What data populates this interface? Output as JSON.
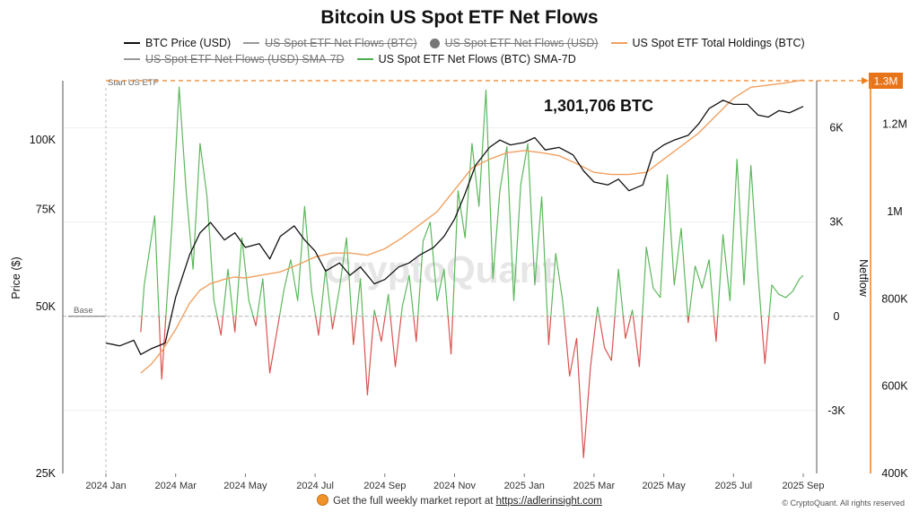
{
  "chart_data": {
    "type": "line",
    "title": "Bitcoin US Spot ETF Net Flows",
    "legend": [
      {
        "name": "BTC Price (USD)",
        "color": "#111111",
        "enabled": true,
        "marker": "line"
      },
      {
        "name": "US Spot ETF Net Flows (BTC)",
        "color": "#999999",
        "enabled": false,
        "marker": "line"
      },
      {
        "name": "US Spot ETF Net Flows (USD)",
        "color": "#777777",
        "enabled": false,
        "marker": "dot"
      },
      {
        "name": "US Spot ETF Total Holdings (BTC)",
        "color": "#f0a060",
        "enabled": true,
        "marker": "line"
      },
      {
        "name": "US Spot ETF Net Flows (USD) SMA-7D",
        "color": "#999999",
        "enabled": false,
        "marker": "line"
      },
      {
        "name": "US Spot ETF Net Flows (BTC) SMA-7D",
        "color": "#4caf50",
        "enabled": true,
        "marker": "line"
      }
    ],
    "x_ticks": [
      "2024 Jan",
      "2024 Mar",
      "2024 May",
      "2024 Jul",
      "2024 Sep",
      "2024 Nov",
      "2025 Jan",
      "2025 Mar",
      "2025 May",
      "2025 Jul",
      "2025 Sep"
    ],
    "price_axis": {
      "label": "Price ($)",
      "scale": "log",
      "ticks": [
        "25K",
        "50K",
        "75K",
        "100K"
      ],
      "values": [
        25000,
        50000,
        75000,
        100000
      ],
      "range": [
        25000,
        128000
      ]
    },
    "netflow_axis": {
      "label": "Netflow",
      "ticks": [
        "-3K",
        "0",
        "3K",
        "6K"
      ],
      "values": [
        -3000,
        0,
        3000,
        6000
      ],
      "range": [
        -5000,
        7500
      ]
    },
    "holdings_axis": {
      "ticks": [
        "400K",
        "600K",
        "800K",
        "1M",
        "1.2M"
      ],
      "values": [
        400000,
        600000,
        800000,
        1000000,
        1200000
      ],
      "range": [
        400000,
        1300000
      ],
      "highlight_label": "1.3M",
      "highlight_value": 1300000
    },
    "annotations": {
      "start_label": "Start US ETF",
      "base_label": "Base",
      "holdings_label": "1,301,706 BTC"
    },
    "series": [
      {
        "name": "BTC Price (USD)",
        "axis": "price",
        "x": [
          0.0,
          0.4,
          0.8,
          1.0,
          1.3,
          1.7,
          2.0,
          2.4,
          2.7,
          3.0,
          3.4,
          3.7,
          4.0,
          4.4,
          4.7,
          5.0,
          5.4,
          5.7,
          6.0,
          6.3,
          6.7,
          7.0,
          7.3,
          7.7,
          8.0,
          8.4,
          8.7,
          9.0,
          9.4,
          9.7,
          10.0,
          10.3,
          10.6,
          11.0,
          11.3,
          11.6,
          12.0,
          12.3,
          12.6,
          13.0,
          13.4,
          13.7,
          14.0,
          14.4,
          14.7,
          15.0,
          15.4,
          15.7,
          16.0,
          16.3,
          16.7,
          17.0,
          17.3,
          17.7,
          18.0,
          18.4,
          18.7,
          19.0,
          19.3,
          19.6,
          20.0
        ],
        "values": [
          43000,
          42500,
          43500,
          41000,
          42000,
          43000,
          52000,
          62000,
          68000,
          71000,
          66000,
          68000,
          64000,
          65000,
          61000,
          67000,
          70000,
          66000,
          63000,
          58000,
          60000,
          57000,
          59000,
          55000,
          56000,
          59000,
          60000,
          62000,
          64000,
          67000,
          72000,
          80000,
          90000,
          97000,
          100000,
          98000,
          99000,
          101000,
          96000,
          97000,
          94000,
          88000,
          84000,
          83000,
          85000,
          81000,
          83000,
          95000,
          98000,
          100000,
          102000,
          107000,
          114000,
          118000,
          116000,
          116000,
          111000,
          110000,
          113000,
          112000,
          115000
        ]
      },
      {
        "name": "US Spot ETF Total Holdings (BTC)",
        "axis": "holdings",
        "x": [
          1.0,
          1.3,
          1.6,
          2.0,
          2.4,
          2.7,
          3.0,
          3.4,
          3.7,
          4.0,
          4.5,
          5.0,
          5.5,
          6.0,
          6.5,
          7.0,
          7.5,
          8.0,
          8.5,
          9.0,
          9.5,
          10.0,
          10.5,
          11.0,
          11.5,
          12.0,
          12.5,
          13.0,
          13.5,
          14.0,
          14.5,
          15.0,
          15.5,
          16.0,
          16.5,
          17.0,
          17.5,
          18.0,
          18.5,
          19.0,
          19.5,
          20.0
        ],
        "values": [
          630000,
          650000,
          680000,
          730000,
          790000,
          820000,
          835000,
          845000,
          850000,
          848000,
          855000,
          862000,
          878000,
          896000,
          905000,
          905000,
          900000,
          915000,
          940000,
          970000,
          1000000,
          1050000,
          1100000,
          1120000,
          1135000,
          1140000,
          1135000,
          1128000,
          1110000,
          1090000,
          1085000,
          1085000,
          1090000,
          1120000,
          1150000,
          1180000,
          1220000,
          1260000,
          1285000,
          1290000,
          1295000,
          1301706
        ]
      },
      {
        "name": "US Spot ETF Net Flows (BTC) SMA-7D",
        "axis": "netflow",
        "x": [
          1.0,
          1.1,
          1.4,
          1.6,
          1.9,
          2.1,
          2.3,
          2.5,
          2.7,
          2.9,
          3.1,
          3.3,
          3.5,
          3.7,
          3.9,
          4.1,
          4.3,
          4.5,
          4.7,
          4.9,
          5.1,
          5.3,
          5.5,
          5.7,
          5.9,
          6.1,
          6.3,
          6.5,
          6.7,
          6.9,
          7.1,
          7.3,
          7.5,
          7.7,
          7.9,
          8.1,
          8.3,
          8.5,
          8.7,
          8.9,
          9.1,
          9.3,
          9.5,
          9.7,
          9.9,
          10.1,
          10.3,
          10.5,
          10.7,
          10.9,
          11.1,
          11.3,
          11.5,
          11.7,
          11.9,
          12.1,
          12.3,
          12.5,
          12.7,
          12.9,
          13.1,
          13.3,
          13.5,
          13.7,
          13.9,
          14.1,
          14.3,
          14.5,
          14.7,
          14.9,
          15.1,
          15.3,
          15.5,
          15.7,
          15.9,
          16.1,
          16.3,
          16.5,
          16.7,
          16.9,
          17.1,
          17.3,
          17.5,
          17.7,
          17.9,
          18.1,
          18.3,
          18.5,
          18.7,
          18.9,
          19.1,
          19.3,
          19.5,
          19.7,
          19.9,
          20.0
        ],
        "values": [
          -500,
          1000,
          3200,
          -2000,
          3000,
          7300,
          4000,
          1500,
          5500,
          3800,
          500,
          -600,
          1500,
          -500,
          2500,
          500,
          -300,
          1200,
          -1800,
          -500,
          800,
          1800,
          500,
          3500,
          800,
          -600,
          1500,
          -400,
          900,
          2500,
          -900,
          1200,
          -2500,
          200,
          -800,
          700,
          -1600,
          300,
          1300,
          -800,
          2400,
          3000,
          500,
          1500,
          -1200,
          4000,
          2500,
          5500,
          3500,
          7200,
          1200,
          4000,
          5400,
          500,
          4200,
          5500,
          1000,
          3800,
          -900,
          2000,
          500,
          -1900,
          -700,
          -4500,
          -1600,
          300,
          -1000,
          -1400,
          1500,
          -700,
          200,
          -1600,
          2200,
          900,
          600,
          4500,
          1000,
          2800,
          -200,
          1600,
          900,
          1800,
          -800,
          2600,
          500,
          5000,
          1000,
          4800,
          1400,
          -1500,
          1000,
          700,
          600,
          800,
          1200,
          1300
        ]
      }
    ]
  },
  "footer": {
    "text": "Get the full weekly market report at ",
    "link": "https://adlerinsight.com"
  },
  "copyright": "© CryptoQuant. All rights reserved",
  "watermark": "CryptoQuant"
}
